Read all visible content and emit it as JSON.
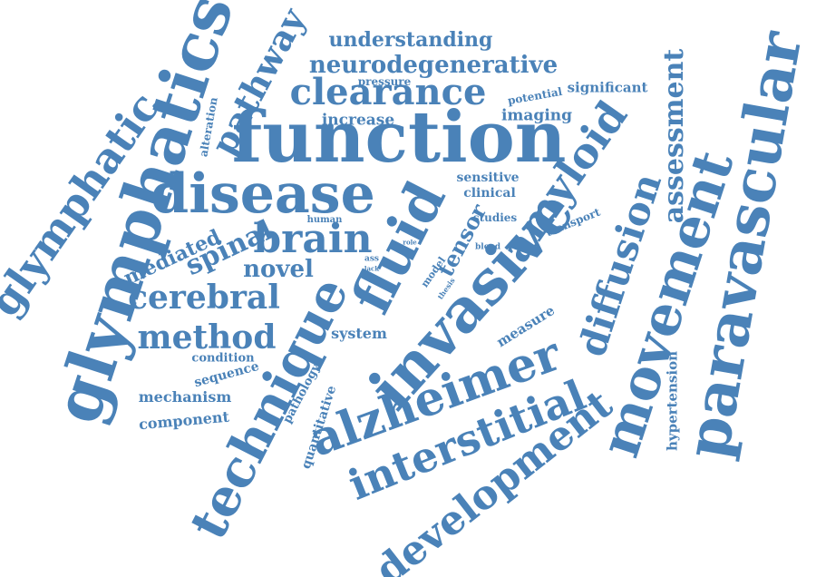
{
  "colors": {
    "word": "#4a82b8",
    "background": "#ffffff"
  },
  "words": [
    {
      "name": "function",
      "text": "function"
    },
    {
      "name": "disease",
      "text": "disease"
    },
    {
      "name": "glymphatics",
      "text": "glymphatics"
    },
    {
      "name": "invasive",
      "text": "invasive"
    },
    {
      "name": "alzheimer",
      "text": "alzheimer"
    },
    {
      "name": "technique",
      "text": "technique"
    },
    {
      "name": "fluid",
      "text": "fluid"
    },
    {
      "name": "movement",
      "text": "movement"
    },
    {
      "name": "paravascular",
      "text": "paravascular"
    },
    {
      "name": "interstitial",
      "text": "interstitial"
    },
    {
      "name": "development",
      "text": "development"
    },
    {
      "name": "clearance",
      "text": "clearance"
    },
    {
      "name": "neurodegenerative",
      "text": "neurodegenerative"
    },
    {
      "name": "glymphatic",
      "text": "glymphatic"
    },
    {
      "name": "brain",
      "text": "brain"
    },
    {
      "name": "cerebral",
      "text": "cerebral"
    },
    {
      "name": "method",
      "text": "method"
    },
    {
      "name": "amyloid",
      "text": "amyloid"
    },
    {
      "name": "diffusion",
      "text": "diffusion"
    },
    {
      "name": "assessment",
      "text": "assessment"
    },
    {
      "name": "pathway",
      "text": "pathway"
    },
    {
      "name": "understanding",
      "text": "understanding"
    },
    {
      "name": "spinal",
      "text": "spinal"
    },
    {
      "name": "novel",
      "text": "novel"
    },
    {
      "name": "mediated",
      "text": "mediated"
    },
    {
      "name": "tensor",
      "text": "tensor"
    },
    {
      "name": "increase",
      "text": "increase"
    },
    {
      "name": "imaging",
      "text": "imaging"
    },
    {
      "name": "significant",
      "text": "significant"
    },
    {
      "name": "potential",
      "text": "potential"
    },
    {
      "name": "pressure",
      "text": "pressure"
    },
    {
      "name": "alteration",
      "text": "alteration"
    },
    {
      "name": "sensitive",
      "text": "sensitive"
    },
    {
      "name": "clinical",
      "text": "clinical"
    },
    {
      "name": "studies",
      "text": "studies"
    },
    {
      "name": "transport",
      "text": "transport"
    },
    {
      "name": "human",
      "text": "human"
    },
    {
      "name": "role",
      "text": "role"
    },
    {
      "name": "blood",
      "text": "blood"
    },
    {
      "name": "ass",
      "text": "ass"
    },
    {
      "name": "lack",
      "text": "lack"
    },
    {
      "name": "model",
      "text": "model"
    },
    {
      "name": "thesis",
      "text": "thesis"
    },
    {
      "name": "measure",
      "text": "measure"
    },
    {
      "name": "system",
      "text": "system"
    },
    {
      "name": "condition",
      "text": "condition"
    },
    {
      "name": "sequence",
      "text": "sequence"
    },
    {
      "name": "mechanism",
      "text": "mechanism"
    },
    {
      "name": "component",
      "text": "component"
    },
    {
      "name": "pathology",
      "text": "pathology"
    },
    {
      "name": "quantitative",
      "text": "quantitative"
    },
    {
      "name": "hypertension",
      "text": "hypertension"
    }
  ]
}
